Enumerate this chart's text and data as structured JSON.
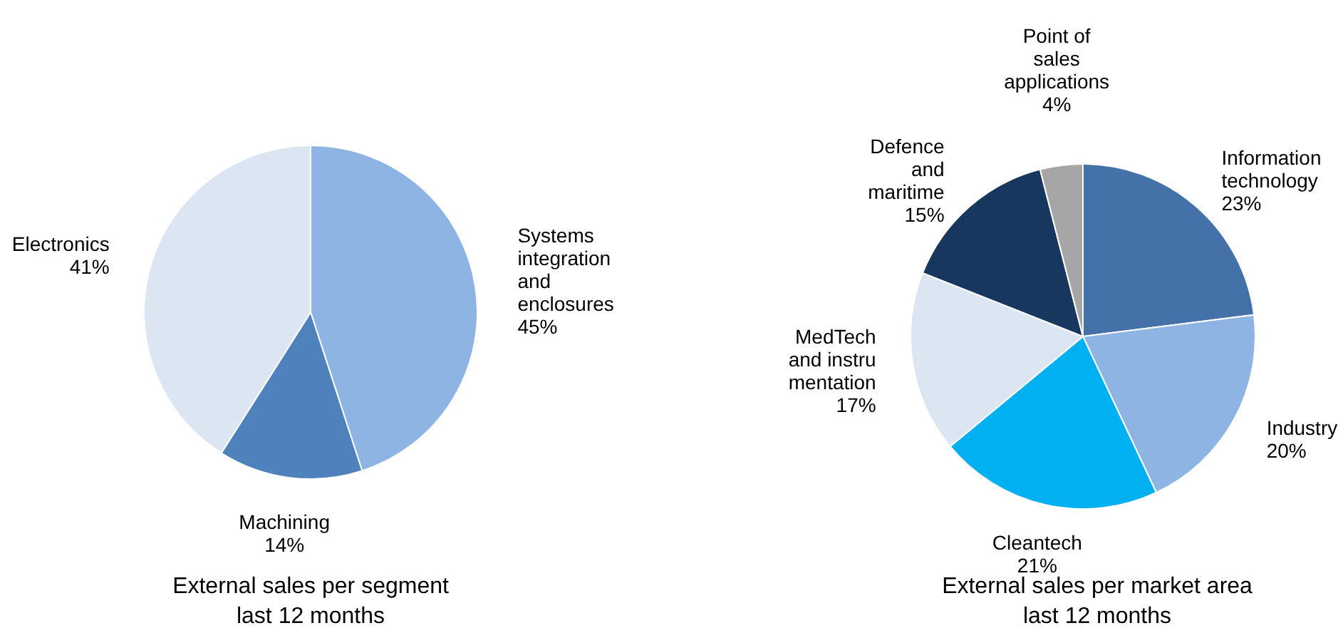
{
  "chart_data": [
    {
      "type": "pie",
      "title": "External sales per segment\nlast 12 months",
      "categories": [
        "Systems\nintegration\nand\nenclosures\n45%",
        "Machining\n14%",
        "Electronics\n41%"
      ],
      "values": [
        45,
        14,
        41
      ],
      "colors": [
        "#8eb4e3",
        "#4f81bd",
        "#dce6f2"
      ]
    },
    {
      "type": "pie",
      "title": "External sales per market area\nlast 12 months",
      "categories": [
        "Information\ntechnology\n23%",
        "Industry\n20%",
        "Cleantech\n21%",
        "MedTech\nand instru\nmentation\n17%",
        "Defence\nand\nmaritime\n15%",
        "Point of\nsales\napplications\n4%"
      ],
      "values": [
        23,
        20,
        21,
        17,
        15,
        4
      ],
      "colors": [
        "#4472a8",
        "#8eb4e3",
        "#00b0f0",
        "#dce6f2",
        "#17375e",
        "#a6a6a6"
      ]
    }
  ]
}
